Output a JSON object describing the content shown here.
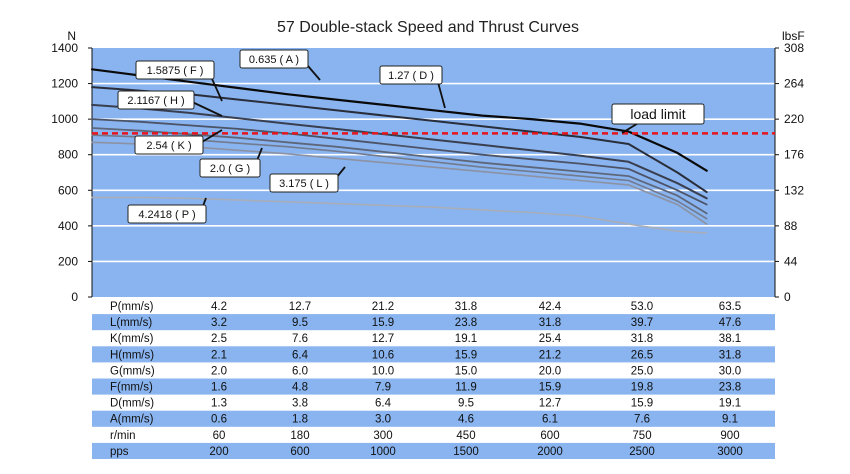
{
  "chart_data": {
    "type": "line",
    "title": "57 Double-stack Speed and Thrust Curves",
    "ylabel_left": "N",
    "ylabel_right": "lbsF",
    "ylim": [
      0,
      1400
    ],
    "yticks_left": [
      "0",
      "200",
      "400",
      "600",
      "800",
      "1000",
      "1200",
      "1400"
    ],
    "yticks_right": [
      "0",
      "44",
      "88",
      "132",
      "176",
      "220",
      "264",
      "308"
    ],
    "x_steps": 7,
    "grid": true,
    "load_limit": {
      "label": "load limit",
      "value": 920,
      "color": "#e8141c"
    },
    "background_color": "#89b4ef",
    "series": [
      {
        "name": "0.635 ( A )",
        "color": "#0a0a0a",
        "width": 2.2,
        "x": [
          0,
          0.5,
          1,
          1.5,
          2,
          2.5,
          3,
          3.5,
          4,
          4.5,
          5,
          5.5,
          6,
          6.3
        ],
        "y": [
          1280,
          1245,
          1210,
          1175,
          1140,
          1110,
          1080,
          1050,
          1020,
          1000,
          975,
          930,
          810,
          710
        ]
      },
      {
        "name": "1.27 ( D )",
        "color": "#2a2e3a",
        "width": 2.0,
        "x": [
          0,
          0.5,
          1,
          1.5,
          2,
          2.5,
          3,
          3.5,
          4,
          4.5,
          5,
          5.5,
          6,
          6.3
        ],
        "y": [
          1180,
          1160,
          1140,
          1110,
          1080,
          1050,
          1020,
          990,
          960,
          930,
          900,
          860,
          700,
          590
        ]
      },
      {
        "name": "1.5875 ( F )",
        "color": "#3a3f50",
        "width": 2.0,
        "x": [
          0,
          0.5,
          1,
          1.5,
          2,
          2.5,
          3,
          3.5,
          4,
          4.5,
          5,
          5.5,
          6,
          6.3
        ],
        "y": [
          1080,
          1060,
          1035,
          1005,
          975,
          945,
          915,
          885,
          855,
          825,
          795,
          760,
          640,
          555
        ]
      },
      {
        "name": "2.1167 ( H )",
        "color": "#4c5366",
        "width": 1.8,
        "x": [
          0,
          0.5,
          1,
          1.5,
          2,
          2.5,
          3,
          3.5,
          4,
          4.5,
          5,
          5.5,
          6,
          6.3
        ],
        "y": [
          1000,
          985,
          965,
          945,
          920,
          890,
          860,
          830,
          800,
          775,
          750,
          720,
          600,
          520
        ]
      },
      {
        "name": "2.54 ( K )",
        "color": "#5e667a",
        "width": 1.8,
        "x": [
          0,
          0.5,
          1,
          1.5,
          2,
          2.5,
          3,
          3.5,
          4,
          4.5,
          5,
          5.5,
          6,
          6.3
        ],
        "y": [
          950,
          935,
          915,
          895,
          870,
          845,
          815,
          785,
          755,
          730,
          705,
          680,
          570,
          470
        ]
      },
      {
        "name": "2.0 ( G )",
        "color": "#727a8e",
        "width": 1.6,
        "x": [
          0,
          0.5,
          1,
          1.5,
          2,
          2.5,
          3,
          3.5,
          4,
          4.5,
          5,
          5.5,
          6,
          6.3
        ],
        "y": [
          910,
          900,
          885,
          865,
          845,
          820,
          790,
          760,
          730,
          705,
          680,
          655,
          540,
          440
        ]
      },
      {
        "name": "3.175 ( L )",
        "color": "#8c92a3",
        "width": 1.6,
        "x": [
          0,
          0.5,
          1,
          1.5,
          2,
          2.5,
          3,
          3.5,
          4,
          4.5,
          5,
          5.5,
          6,
          6.3
        ],
        "y": [
          870,
          860,
          845,
          825,
          805,
          780,
          755,
          730,
          705,
          680,
          655,
          630,
          520,
          410
        ]
      },
      {
        "name": "4.2418 ( P )",
        "color": "#a8adba",
        "width": 1.6,
        "x": [
          0,
          0.5,
          1,
          1.5,
          2,
          2.5,
          3,
          3.5,
          4,
          4.5,
          5,
          5.5,
          6,
          6.3
        ],
        "y": [
          560,
          560,
          555,
          545,
          535,
          525,
          515,
          505,
          490,
          475,
          455,
          410,
          370,
          360
        ]
      }
    ],
    "table": {
      "rows": [
        {
          "label": "P(mm/s)",
          "values": [
            "4.2",
            "12.7",
            "21.2",
            "31.8",
            "42.4",
            "53.0",
            "63.5"
          ],
          "shaded": false
        },
        {
          "label": "L(mm/s)",
          "values": [
            "3.2",
            "9.5",
            "15.9",
            "23.8",
            "31.8",
            "39.7",
            "47.6"
          ],
          "shaded": true
        },
        {
          "label": "K(mm/s)",
          "values": [
            "2.5",
            "7.6",
            "12.7",
            "19.1",
            "25.4",
            "31.8",
            "38.1"
          ],
          "shaded": false
        },
        {
          "label": "H(mm/s)",
          "values": [
            "2.1",
            "6.4",
            "10.6",
            "15.9",
            "21.2",
            "26.5",
            "31.8"
          ],
          "shaded": true
        },
        {
          "label": "G(mm/s)",
          "values": [
            "2.0",
            "6.0",
            "10.0",
            "15.0",
            "20.0",
            "25.0",
            "30.0"
          ],
          "shaded": false
        },
        {
          "label": "F(mm/s)",
          "values": [
            "1.6",
            "4.8",
            "7.9",
            "11.9",
            "15.9",
            "19.8",
            "23.8"
          ],
          "shaded": true
        },
        {
          "label": "D(mm/s)",
          "values": [
            "1.3",
            "3.8",
            "6.4",
            "9.5",
            "12.7",
            "15.9",
            "19.1"
          ],
          "shaded": false
        },
        {
          "label": "A(mm/s)",
          "values": [
            "0.6",
            "1.8",
            "3.0",
            "4.6",
            "6.1",
            "7.6",
            "9.1"
          ],
          "shaded": true
        },
        {
          "label": "r/min",
          "values": [
            "60",
            "180",
            "300",
            "450",
            "600",
            "750",
            "900"
          ],
          "shaded": false
        },
        {
          "label": "pps",
          "values": [
            "200",
            "600",
            "1000",
            "1500",
            "2000",
            "2500",
            "3000"
          ],
          "shaded": true
        }
      ]
    }
  }
}
